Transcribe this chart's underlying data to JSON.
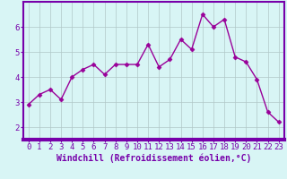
{
  "x": [
    0,
    1,
    2,
    3,
    4,
    5,
    6,
    7,
    8,
    9,
    10,
    11,
    12,
    13,
    14,
    15,
    16,
    17,
    18,
    19,
    20,
    21,
    22,
    23
  ],
  "y": [
    2.9,
    3.3,
    3.5,
    3.1,
    4.0,
    4.3,
    4.5,
    4.1,
    4.5,
    4.5,
    4.5,
    5.3,
    4.4,
    4.7,
    5.5,
    5.1,
    6.5,
    6.0,
    6.3,
    4.8,
    4.6,
    3.9,
    2.6,
    2.2
  ],
  "line_color": "#990099",
  "marker": "D",
  "marker_size": 2.5,
  "bg_color": "#d8f5f5",
  "grid_color": "#b0c8c8",
  "ylim": [
    1.5,
    7.0
  ],
  "xlim": [
    -0.5,
    23.5
  ],
  "yticks": [
    2,
    3,
    4,
    5,
    6
  ],
  "xticks": [
    0,
    1,
    2,
    3,
    4,
    5,
    6,
    7,
    8,
    9,
    10,
    11,
    12,
    13,
    14,
    15,
    16,
    17,
    18,
    19,
    20,
    21,
    22,
    23
  ],
  "xlabel": "Windchill (Refroidissement éolien,°C)",
  "axis_bar_color": "#7700aa",
  "tick_label_color": "#7700aa",
  "xlabel_color": "#7700aa",
  "xlabel_fontsize": 7.0,
  "tick_fontsize": 6.5,
  "line_width": 1.0
}
